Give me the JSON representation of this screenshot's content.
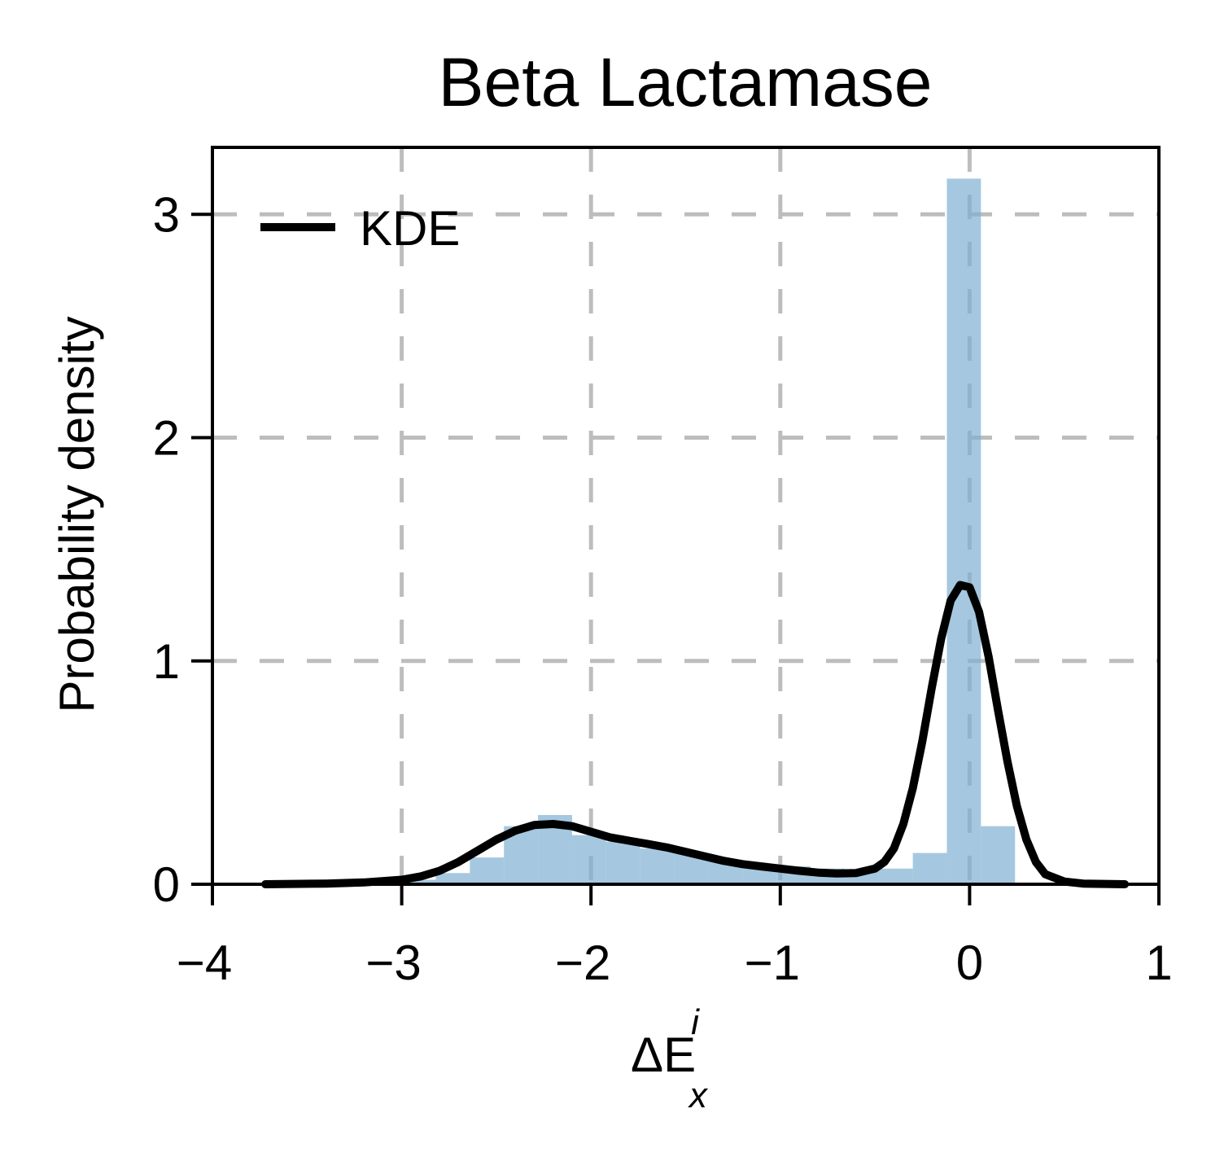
{
  "chart_data": {
    "type": "histogram",
    "title": "Beta Lactamase",
    "ylabel": "Probability density",
    "xlabel": {
      "base": "ΔE",
      "superscript": "i",
      "subscript": "x"
    },
    "xlim": [
      -4,
      1
    ],
    "ylim": [
      0,
      3.3
    ],
    "grid": true,
    "legend": {
      "position": "top-left",
      "entries": [
        "KDE"
      ]
    },
    "x_ticks": [
      -4,
      -3,
      -2,
      -1,
      0,
      1
    ],
    "x_tick_labels": [
      "−4",
      "−3",
      "−2",
      "−1",
      "0",
      "1"
    ],
    "y_ticks": [
      0,
      1,
      2,
      3
    ],
    "y_tick_labels": [
      "0",
      "1",
      "2",
      "3"
    ],
    "histogram": {
      "bin_edges": [
        -3.72,
        -3.54,
        -3.36,
        -3.18,
        -3.0,
        -2.82,
        -2.64,
        -2.46,
        -2.28,
        -2.1,
        -1.92,
        -1.74,
        -1.56,
        -1.38,
        -1.2,
        -1.02,
        -0.84,
        -0.66,
        -0.48,
        -0.3,
        -0.12,
        0.06,
        0.24
      ],
      "values": [
        0.005,
        0.005,
        0.005,
        0.01,
        0.02,
        0.05,
        0.12,
        0.26,
        0.31,
        0.22,
        0.19,
        0.16,
        0.14,
        0.11,
        0.09,
        0.08,
        0.07,
        0.06,
        0.07,
        0.14,
        3.16,
        0.26
      ]
    },
    "series": [
      {
        "name": "KDE",
        "x": [
          -3.72,
          -3.4,
          -3.2,
          -3.0,
          -2.9,
          -2.8,
          -2.7,
          -2.6,
          -2.5,
          -2.4,
          -2.3,
          -2.2,
          -2.1,
          -2.0,
          -1.9,
          -1.8,
          -1.7,
          -1.6,
          -1.5,
          -1.4,
          -1.3,
          -1.2,
          -1.1,
          -1.0,
          -0.9,
          -0.8,
          -0.7,
          -0.6,
          -0.5,
          -0.45,
          -0.4,
          -0.35,
          -0.3,
          -0.25,
          -0.2,
          -0.15,
          -0.1,
          -0.05,
          0.0,
          0.05,
          0.1,
          0.15,
          0.2,
          0.25,
          0.3,
          0.35,
          0.4,
          0.5,
          0.6,
          0.82
        ],
        "y": [
          0.0,
          0.003,
          0.008,
          0.02,
          0.035,
          0.06,
          0.1,
          0.15,
          0.2,
          0.24,
          0.265,
          0.27,
          0.26,
          0.235,
          0.21,
          0.195,
          0.18,
          0.165,
          0.145,
          0.125,
          0.105,
          0.09,
          0.08,
          0.07,
          0.06,
          0.052,
          0.048,
          0.05,
          0.07,
          0.1,
          0.16,
          0.27,
          0.43,
          0.64,
          0.88,
          1.1,
          1.27,
          1.34,
          1.33,
          1.22,
          1.02,
          0.78,
          0.55,
          0.35,
          0.2,
          0.1,
          0.045,
          0.012,
          0.003,
          0.0
        ]
      }
    ]
  }
}
